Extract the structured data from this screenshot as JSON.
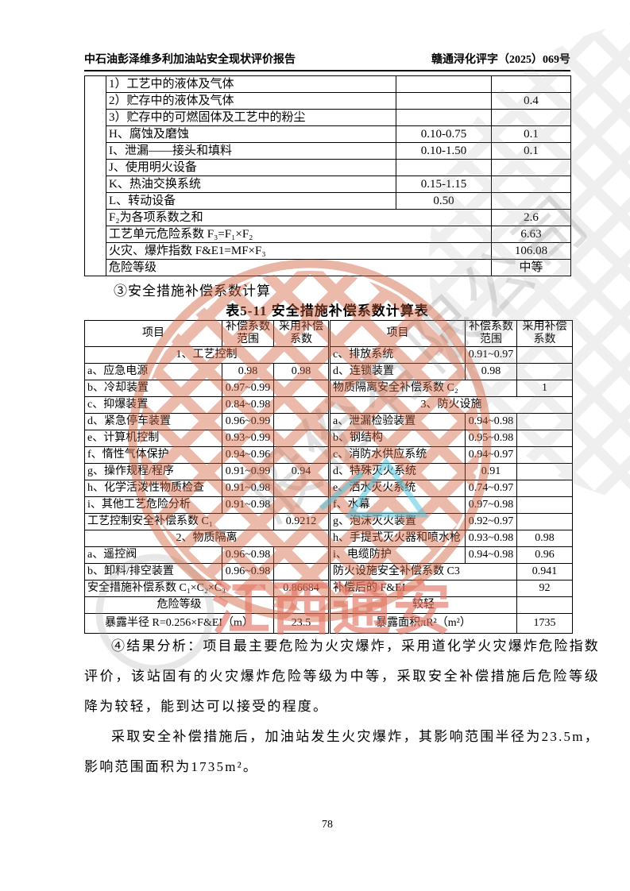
{
  "header": {
    "left": "中石油彭泽维多利加油站安全现状评价报告",
    "right": "赣通浔化评字（2025）069号"
  },
  "section": {
    "heading": "③安全措施补偿系数计算",
    "table_title": "表5-11 安全措施补偿系数计算表"
  },
  "tables": {
    "dow": {
      "rows": [
        {
          "cells": [
            {
              "t": "",
              "r": 12
            },
            {
              "t": "1）工艺中的液体及气体",
              "a": "l"
            },
            {
              "t": ""
            },
            {
              "t": ""
            }
          ]
        },
        {
          "cells": [
            {
              "t": "2）贮存中的液体及气体",
              "a": "l"
            },
            {
              "t": ""
            },
            {
              "t": "0.4"
            }
          ]
        },
        {
          "cells": [
            {
              "t": "3）贮存中的可燃固体及工艺中的粉尘",
              "a": "l"
            },
            {
              "t": ""
            },
            {
              "t": ""
            }
          ]
        },
        {
          "cells": [
            {
              "t": "H、腐蚀及磨蚀",
              "a": "l"
            },
            {
              "t": "0.10-0.75"
            },
            {
              "t": "0.1"
            }
          ]
        },
        {
          "cells": [
            {
              "t": "I、泄漏——接头和填料",
              "a": "l"
            },
            {
              "t": "0.10-1.50"
            },
            {
              "t": "0.1"
            }
          ]
        },
        {
          "cells": [
            {
              "t": "J、使用明火设备",
              "a": "l"
            },
            {
              "t": ""
            },
            {
              "t": ""
            }
          ]
        },
        {
          "cells": [
            {
              "t": "K、热油交换系统",
              "a": "l"
            },
            {
              "t": "0.15-1.15"
            },
            {
              "t": ""
            }
          ]
        },
        {
          "cells": [
            {
              "t": "L、转动设备",
              "a": "l"
            },
            {
              "t": "0.50"
            },
            {
              "t": ""
            }
          ]
        },
        {
          "cells": [
            {
              "t": "F₂为各项系数之和",
              "s": 2,
              "a": "l"
            },
            {
              "t": "2.6"
            }
          ]
        },
        {
          "cells": [
            {
              "t": "工艺单元危险系数 F₃=F₁×F₂",
              "s": 2,
              "a": "l"
            },
            {
              "t": "6.63"
            }
          ]
        },
        {
          "cells": [
            {
              "t": "火灾、爆炸指数 F&E1=MF×F₃",
              "s": 2,
              "a": "l"
            },
            {
              "t": "106.08"
            }
          ]
        },
        {
          "cells": [
            {
              "t": "危险等级",
              "s": 2,
              "a": "l"
            },
            {
              "t": "中等"
            }
          ]
        }
      ]
    },
    "compensation": {
      "rows": [
        {
          "h": true,
          "cells": [
            {
              "t": "项目"
            },
            {
              "t": "补偿系数范围"
            },
            {
              "t": "采用补偿系数"
            },
            {
              "t": "项目",
              "dl": true
            },
            {
              "t": "补偿系数范围"
            },
            {
              "t": "采用补偿系数"
            }
          ]
        },
        {
          "cells": [
            {
              "t": "1、工艺控制",
              "s": 3
            },
            {
              "t": "c、排放系统",
              "a": "l",
              "dl": true
            },
            {
              "t": "0.91~0.97"
            },
            {
              "t": ""
            }
          ]
        },
        {
          "cells": [
            {
              "t": "a、应急电源",
              "a": "l"
            },
            {
              "t": "0.98"
            },
            {
              "t": "0.98"
            },
            {
              "t": "d、连锁装置",
              "a": "l",
              "dl": true
            },
            {
              "t": "0.98"
            },
            {
              "t": ""
            }
          ]
        },
        {
          "cells": [
            {
              "t": "b、冷却装置",
              "a": "l"
            },
            {
              "t": "0.97~0.99"
            },
            {
              "t": ""
            },
            {
              "t": "物质隔离安全补偿系数 C₂",
              "s": 2,
              "a": "l",
              "dl": true
            },
            {
              "t": "1"
            }
          ]
        },
        {
          "cells": [
            {
              "t": "c、抑爆装置",
              "a": "l"
            },
            {
              "t": "0.84~0.98"
            },
            {
              "t": ""
            },
            {
              "t": "3、防火设施",
              "s": 3,
              "dl": true
            }
          ]
        },
        {
          "cells": [
            {
              "t": "d、紧急停车装置",
              "a": "l"
            },
            {
              "t": "0.96~0.99"
            },
            {
              "t": ""
            },
            {
              "t": "a、泄漏检验装置",
              "a": "l",
              "dl": true
            },
            {
              "t": "0.94~0.98"
            },
            {
              "t": ""
            }
          ]
        },
        {
          "cells": [
            {
              "t": "e、计算机控制",
              "a": "l"
            },
            {
              "t": "0.93~0.99"
            },
            {
              "t": ""
            },
            {
              "t": "b、钢结构",
              "a": "l",
              "dl": true
            },
            {
              "t": "0.95~0.98"
            },
            {
              "t": ""
            }
          ]
        },
        {
          "cells": [
            {
              "t": "f、惰性气体保护",
              "a": "l"
            },
            {
              "t": "0.94~0.96"
            },
            {
              "t": ""
            },
            {
              "t": "c、消防水供应系统",
              "a": "l",
              "dl": true
            },
            {
              "t": "0.94~0.97"
            },
            {
              "t": ""
            }
          ]
        },
        {
          "cells": [
            {
              "t": "g、操作规程/程序",
              "a": "l"
            },
            {
              "t": "0.91~0.99"
            },
            {
              "t": "0.94"
            },
            {
              "t": "d、特殊灭火系统",
              "a": "l",
              "dl": true
            },
            {
              "t": "0.91"
            },
            {
              "t": ""
            }
          ]
        },
        {
          "cells": [
            {
              "t": "h、化学活泼性物质检查",
              "a": "l"
            },
            {
              "t": "0.91~0.98"
            },
            {
              "t": ""
            },
            {
              "t": "e、洒水灭火系统",
              "a": "l",
              "dl": true
            },
            {
              "t": "0.74~0.97"
            },
            {
              "t": ""
            }
          ]
        },
        {
          "cells": [
            {
              "t": "i、其他工艺危险分析",
              "a": "l"
            },
            {
              "t": "0.91~0.98"
            },
            {
              "t": ""
            },
            {
              "t": "f、水幕",
              "a": "l",
              "dl": true
            },
            {
              "t": "0.97~0.98"
            },
            {
              "t": ""
            }
          ]
        },
        {
          "cells": [
            {
              "t": "工艺控制安全补偿系数 C₁",
              "s": 2,
              "a": "l"
            },
            {
              "t": "0.9212"
            },
            {
              "t": "g、泡沫灭火装置",
              "a": "l",
              "dl": true
            },
            {
              "t": "0.92~0.97"
            },
            {
              "t": ""
            }
          ]
        },
        {
          "cells": [
            {
              "t": "2、物质隔离",
              "s": 3
            },
            {
              "t": "h、手提式灭火器和喷水枪",
              "a": "l",
              "dl": true
            },
            {
              "t": "0.93~0.98"
            },
            {
              "t": "0.98"
            }
          ]
        },
        {
          "cells": [
            {
              "t": "a、遥控阀",
              "a": "l"
            },
            {
              "t": "0.96~0.98"
            },
            {
              "t": ""
            },
            {
              "t": "i、电缆防护",
              "a": "l",
              "dl": true
            },
            {
              "t": "0.94~0.98"
            },
            {
              "t": "0.96"
            }
          ]
        },
        {
          "cells": [
            {
              "t": "b、卸料/排空装置",
              "a": "l"
            },
            {
              "t": "0.96~0.98"
            },
            {
              "t": ""
            },
            {
              "t": "防火设施安全补偿系数 C3",
              "s": 2,
              "a": "l",
              "dl": true
            },
            {
              "t": "0.941"
            }
          ]
        },
        {
          "cells": [
            {
              "t": "安全措施补偿系数 C₁×C₂×C₃",
              "s": 2,
              "a": "l"
            },
            {
              "t": "0.86684"
            },
            {
              "t": "补偿后的 F&EI",
              "s": 2,
              "a": "l",
              "dl": true
            },
            {
              "t": "92"
            }
          ]
        },
        {
          "cells": [
            {
              "t": "危险等级",
              "s": 2
            },
            {
              "t": ""
            },
            {
              "t": "较轻",
              "s": 2,
              "dl": true
            },
            {
              "t": ""
            }
          ]
        },
        {
          "cells": [
            {
              "t": "暴露半径 R=0.256×F&EI（m）",
              "s": 2
            },
            {
              "t": "23.5"
            },
            {
              "t": "暴露面积πR²（m²）",
              "s": 2,
              "dl": true
            },
            {
              "t": "1735"
            }
          ]
        }
      ]
    }
  },
  "paragraphs": {
    "p1": "④结果分析：项目最主要危险为火灾爆炸，采用道化学火灾爆炸危险指数评价，该站固有的火灾爆炸危险等级为中等，采取安全补偿措施后危险等级降为较轻，能到达可以接受的程度。",
    "p2": "采取安全补偿措施后，加油站发生火灾爆炸，其影响范围半径为23.5m，影响范围面积为1735m²。"
  },
  "page": {
    "number": "78"
  },
  "watermark": {
    "stamp_text": "江西通安",
    "diagonal_text": "股份有限公司"
  }
}
